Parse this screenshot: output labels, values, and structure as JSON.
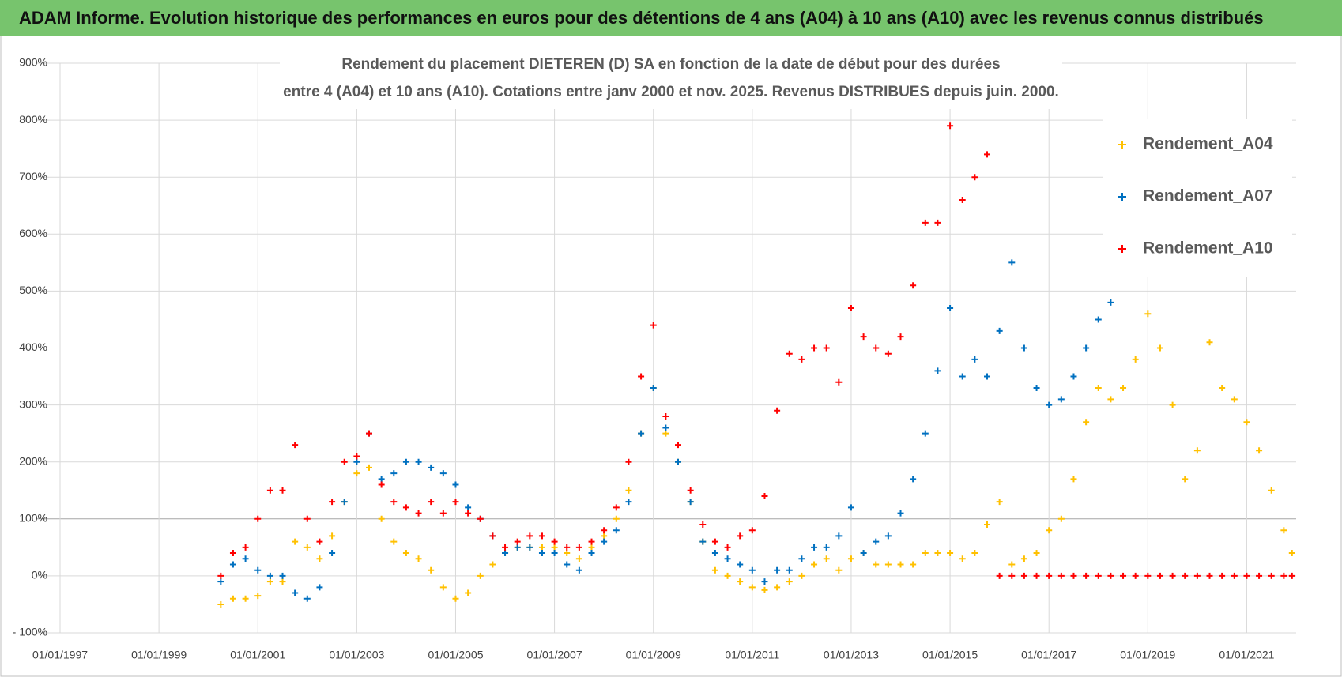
{
  "chart_data": {
    "type": "scatter",
    "title": "ADAM Informe. Evolution historique des performances en euros pour des détentions de 4 ans (A04) à 10 ans (A10) avec les revenus connus distribués",
    "subtitle": [
      "Rendement du placement DIETEREN (D) SA en fonction de la date de début pour des durées",
      "entre 4 (A04) et 10 ans (A10).  Cotations entre janv 2000 et nov. 2025. Revenus DISTRIBUES depuis juin. 2000."
    ],
    "xlim": [
      "01/01/1997",
      "01/01/2022"
    ],
    "xticks": [
      "01/01/1997",
      "01/01/1999",
      "01/01/2001",
      "01/01/2003",
      "01/01/2005",
      "01/01/2007",
      "01/01/2009",
      "01/01/2011",
      "01/01/2013",
      "01/01/2015",
      "01/01/2017",
      "01/01/2019",
      "01/01/2021"
    ],
    "ylim": [
      -100,
      900
    ],
    "yticks": [
      {
        "value": -100,
        "label": "- 100%"
      },
      {
        "value": 0,
        "label": "0%"
      },
      {
        "value": 100,
        "label": "100%"
      },
      {
        "value": 200,
        "label": "200%"
      },
      {
        "value": 300,
        "label": "300%"
      },
      {
        "value": 400,
        "label": "400%"
      },
      {
        "value": 500,
        "label": "500%"
      },
      {
        "value": 600,
        "label": "600%"
      },
      {
        "value": 700,
        "label": "700%"
      },
      {
        "value": 800,
        "label": "800%"
      },
      {
        "value": 900,
        "label": "900%"
      }
    ],
    "grid": true,
    "legend": "upper right",
    "series": [
      {
        "name": "Rendement_A04",
        "color": "#ffc000",
        "x": [
          "01/04/2000",
          "01/07/2000",
          "01/10/2000",
          "01/01/2001",
          "01/04/2001",
          "01/07/2001",
          "01/10/2001",
          "01/01/2002",
          "01/04/2002",
          "01/07/2002",
          "01/10/2002",
          "01/01/2003",
          "01/04/2003",
          "01/07/2003",
          "01/10/2003",
          "01/01/2004",
          "01/04/2004",
          "01/07/2004",
          "01/10/2004",
          "01/01/2005",
          "01/04/2005",
          "01/07/2005",
          "01/10/2005",
          "01/01/2006",
          "01/04/2006",
          "01/07/2006",
          "01/10/2006",
          "01/01/2007",
          "01/04/2007",
          "01/07/2007",
          "01/10/2007",
          "01/01/2008",
          "01/04/2008",
          "01/07/2008",
          "01/10/2008",
          "01/01/2009",
          "01/04/2009",
          "01/07/2009",
          "01/10/2009",
          "01/01/2010",
          "01/04/2010",
          "01/07/2010",
          "01/10/2010",
          "01/01/2011",
          "01/04/2011",
          "01/07/2011",
          "01/10/2011",
          "01/01/2012",
          "01/04/2012",
          "01/07/2012",
          "01/10/2012",
          "01/01/2013",
          "01/04/2013",
          "01/07/2013",
          "01/10/2013",
          "01/01/2014",
          "01/04/2014",
          "01/07/2014",
          "01/10/2014",
          "01/01/2015",
          "01/04/2015",
          "01/07/2015",
          "01/10/2015",
          "01/01/2016",
          "01/04/2016",
          "01/07/2016",
          "01/10/2016",
          "01/01/2017",
          "01/04/2017",
          "01/07/2017",
          "01/10/2017",
          "01/01/2018",
          "01/04/2018",
          "01/07/2018",
          "01/10/2018",
          "01/01/2019",
          "01/04/2019",
          "01/07/2019",
          "01/10/2019",
          "01/01/2020",
          "01/04/2020",
          "01/07/2020",
          "01/10/2020",
          "01/01/2021",
          "01/04/2021",
          "01/07/2021",
          "01/10/2021",
          "01/12/2021"
        ],
        "values": [
          -50,
          -40,
          -40,
          -35,
          -10,
          -10,
          60,
          50,
          30,
          70,
          130,
          180,
          190,
          100,
          60,
          40,
          30,
          10,
          -20,
          -40,
          -30,
          0,
          20,
          40,
          50,
          50,
          50,
          50,
          40,
          30,
          50,
          70,
          100,
          150,
          250,
          330,
          250,
          200,
          130,
          60,
          10,
          0,
          -10,
          -20,
          -25,
          -20,
          -10,
          0,
          20,
          30,
          10,
          30,
          40,
          20,
          20,
          20,
          20,
          40,
          40,
          40,
          30,
          40,
          90,
          130,
          20,
          30,
          40,
          80,
          100,
          170,
          270,
          330,
          310,
          330,
          380,
          460,
          400,
          300,
          170,
          220,
          410,
          330,
          310,
          270,
          220,
          150,
          80,
          40
        ]
      },
      {
        "name": "Rendement_A07",
        "color": "#0070c0",
        "x": [
          "01/04/2000",
          "01/07/2000",
          "01/10/2000",
          "01/01/2001",
          "01/04/2001",
          "01/07/2001",
          "01/10/2001",
          "01/01/2002",
          "01/04/2002",
          "01/07/2002",
          "01/10/2002",
          "01/01/2003",
          "01/04/2003",
          "01/07/2003",
          "01/10/2003",
          "01/01/2004",
          "01/04/2004",
          "01/07/2004",
          "01/10/2004",
          "01/01/2005",
          "01/04/2005",
          "01/07/2005",
          "01/10/2005",
          "01/01/2006",
          "01/04/2006",
          "01/07/2006",
          "01/10/2006",
          "01/01/2007",
          "01/04/2007",
          "01/07/2007",
          "01/10/2007",
          "01/01/2008",
          "01/04/2008",
          "01/07/2008",
          "01/10/2008",
          "01/01/2009",
          "01/04/2009",
          "01/07/2009",
          "01/10/2009",
          "01/01/2010",
          "01/04/2010",
          "01/07/2010",
          "01/10/2010",
          "01/01/2011",
          "01/04/2011",
          "01/07/2011",
          "01/10/2011",
          "01/01/2012",
          "01/04/2012",
          "01/07/2012",
          "01/10/2012",
          "01/01/2013",
          "01/04/2013",
          "01/07/2013",
          "01/10/2013",
          "01/01/2014",
          "01/04/2014",
          "01/07/2014",
          "01/10/2014",
          "01/01/2015",
          "01/04/2015",
          "01/07/2015",
          "01/10/2015",
          "01/01/2016",
          "01/04/2016",
          "01/07/2016",
          "01/10/2016",
          "01/01/2017",
          "01/04/2017",
          "01/07/2017",
          "01/10/2017",
          "01/01/2018",
          "01/04/2018"
        ],
        "values": [
          -10,
          20,
          30,
          10,
          0,
          0,
          -30,
          -40,
          -20,
          40,
          130,
          200,
          250,
          170,
          180,
          200,
          200,
          190,
          180,
          160,
          120,
          100,
          70,
          40,
          50,
          50,
          40,
          40,
          20,
          10,
          40,
          60,
          80,
          130,
          250,
          330,
          260,
          200,
          130,
          60,
          40,
          30,
          20,
          10,
          -10,
          10,
          10,
          30,
          50,
          50,
          70,
          120,
          40,
          60,
          70,
          110,
          170,
          250,
          360,
          470,
          350,
          380,
          350,
          430,
          550,
          400,
          330,
          300,
          310,
          350,
          400,
          450,
          480
        ]
      },
      {
        "name": "Rendement_A10",
        "color": "#ff0000",
        "x": [
          "01/04/2000",
          "01/07/2000",
          "01/10/2000",
          "01/01/2001",
          "01/04/2001",
          "01/07/2001",
          "01/10/2001",
          "01/01/2002",
          "01/04/2002",
          "01/07/2002",
          "01/10/2002",
          "01/01/2003",
          "01/04/2003",
          "01/07/2003",
          "01/10/2003",
          "01/01/2004",
          "01/04/2004",
          "01/07/2004",
          "01/10/2004",
          "01/01/2005",
          "01/04/2005",
          "01/07/2005",
          "01/10/2005",
          "01/01/2006",
          "01/04/2006",
          "01/07/2006",
          "01/10/2006",
          "01/01/2007",
          "01/04/2007",
          "01/07/2007",
          "01/10/2007",
          "01/01/2008",
          "01/04/2008",
          "01/07/2008",
          "01/10/2008",
          "01/01/2009",
          "01/04/2009",
          "01/07/2009",
          "01/10/2009",
          "01/01/2010",
          "01/04/2010",
          "01/07/2010",
          "01/10/2010",
          "01/01/2011",
          "01/04/2011",
          "01/07/2011",
          "01/10/2011",
          "01/01/2012",
          "01/04/2012",
          "01/07/2012",
          "01/10/2012",
          "01/01/2013",
          "01/04/2013",
          "01/07/2013",
          "01/10/2013",
          "01/01/2014",
          "01/04/2014",
          "01/07/2014",
          "01/10/2014",
          "01/01/2015",
          "01/04/2015",
          "01/07/2015",
          "01/10/2015",
          "01/01/2016",
          "01/04/2016",
          "01/07/2016",
          "01/10/2016",
          "01/01/2017",
          "01/04/2017",
          "01/07/2017",
          "01/10/2017",
          "01/01/2018",
          "01/04/2018",
          "01/07/2018",
          "01/10/2018",
          "01/01/2019",
          "01/04/2019",
          "01/07/2019",
          "01/10/2019",
          "01/01/2020",
          "01/04/2020",
          "01/07/2020",
          "01/10/2020",
          "01/01/2021",
          "01/04/2021",
          "01/07/2021",
          "01/10/2021",
          "01/12/2021"
        ],
        "values": [
          0,
          40,
          50,
          100,
          150,
          150,
          230,
          100,
          60,
          130,
          200,
          210,
          250,
          160,
          130,
          120,
          110,
          130,
          110,
          130,
          110,
          100,
          70,
          50,
          60,
          70,
          70,
          60,
          50,
          50,
          60,
          80,
          120,
          200,
          350,
          440,
          280,
          230,
          150,
          90,
          60,
          50,
          70,
          80,
          140,
          290,
          390,
          380,
          400,
          400,
          340,
          470,
          420,
          400,
          390,
          420,
          510,
          620,
          620,
          790,
          660,
          700,
          740,
          0,
          0,
          0,
          0,
          0,
          0,
          0,
          0,
          0,
          0,
          0,
          0,
          0,
          0,
          0,
          0,
          0,
          0,
          0,
          0,
          0,
          0,
          0,
          0,
          0
        ]
      }
    ]
  }
}
